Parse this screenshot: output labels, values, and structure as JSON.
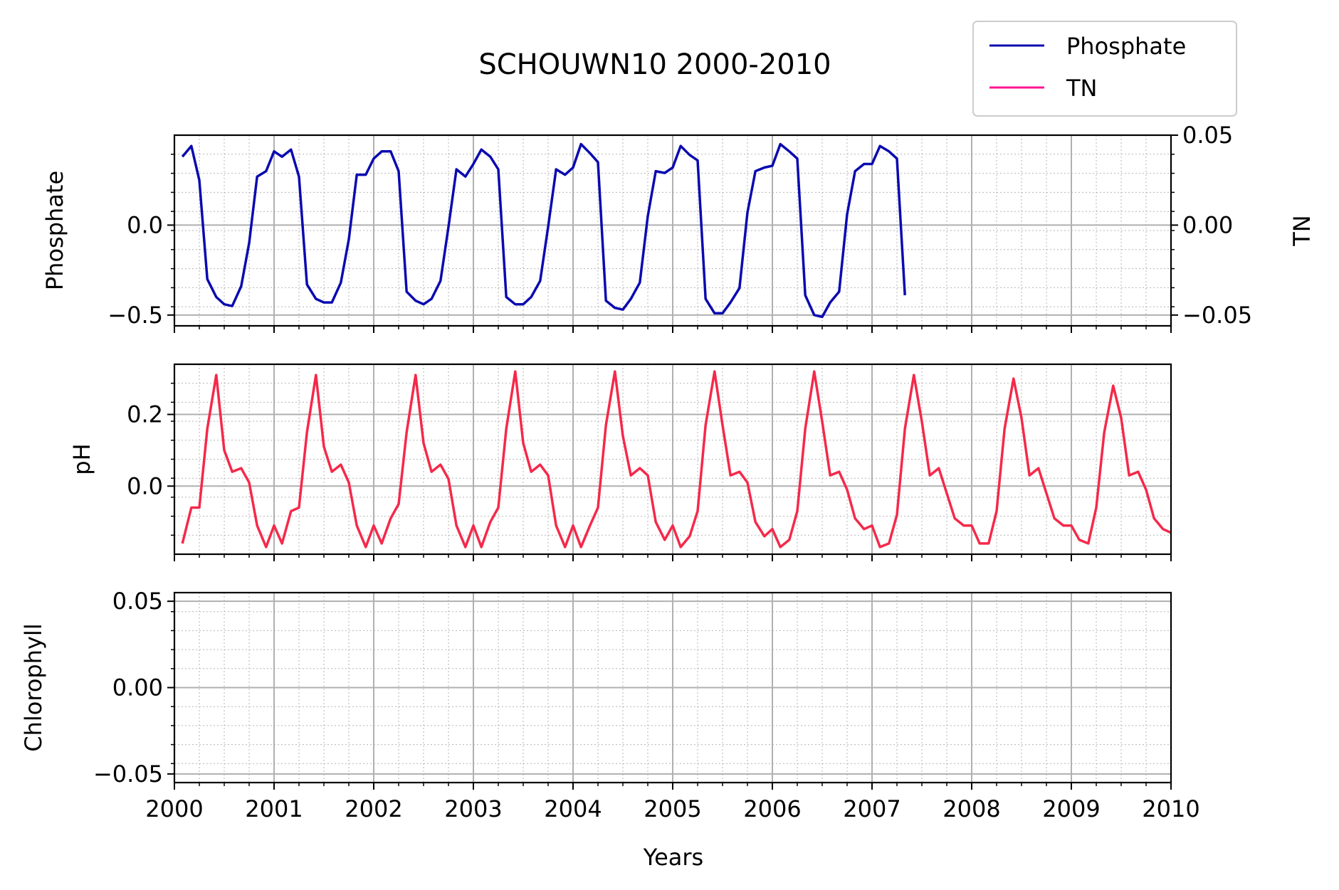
{
  "title": "SCHOUWN10 2000-2010",
  "xlabel": "Years",
  "legend": [
    {
      "label": "Phosphate",
      "color": "#0a0ab0"
    },
    {
      "label": "TN",
      "color": "#ff1493"
    }
  ],
  "chart_data": [
    {
      "type": "line",
      "panel": "top",
      "ylabel": "Phosphate",
      "ylabel_right": "TN",
      "xlim": [
        2000,
        2010
      ],
      "ylim": [
        -0.56,
        0.5
      ],
      "ylim_right": [
        -0.056,
        0.05
      ],
      "yticks": [
        {
          "v": -0.5,
          "label": "−0.5"
        },
        {
          "v": 0.0,
          "label": "0.0"
        }
      ],
      "yticks_right": [
        {
          "v": -0.05,
          "label": "−0.05"
        },
        {
          "v": 0.0,
          "label": "0.00"
        },
        {
          "v": 0.05,
          "label": "0.05"
        }
      ],
      "grid": true,
      "series": [
        {
          "name": "Phosphate",
          "color": "#0a0ab0",
          "x": [
            2000.08,
            2000.17,
            2000.25,
            2000.33,
            2000.42,
            2000.5,
            2000.58,
            2000.67,
            2000.75,
            2000.83,
            2000.92,
            2001.0,
            2001.08,
            2001.17,
            2001.25,
            2001.33,
            2001.42,
            2001.5,
            2001.58,
            2001.67,
            2001.75,
            2001.83,
            2001.92,
            2002.0,
            2002.08,
            2002.17,
            2002.25,
            2002.33,
            2002.42,
            2002.5,
            2002.58,
            2002.67,
            2002.75,
            2002.83,
            2002.92,
            2003.0,
            2003.08,
            2003.17,
            2003.25,
            2003.33,
            2003.42,
            2003.5,
            2003.58,
            2003.67,
            2003.75,
            2003.83,
            2003.92,
            2004.0,
            2004.08,
            2004.17,
            2004.25,
            2004.33,
            2004.42,
            2004.5,
            2004.58,
            2004.67,
            2004.75,
            2004.83,
            2004.92,
            2005.0,
            2005.08,
            2005.17,
            2005.25,
            2005.33,
            2005.42,
            2005.5,
            2005.58,
            2005.67,
            2005.75,
            2005.83,
            2005.92,
            2006.0,
            2006.08,
            2006.17,
            2006.25,
            2006.33,
            2006.42,
            2006.5,
            2006.58,
            2006.67,
            2006.75,
            2006.83,
            2006.92,
            2007.0,
            2007.08,
            2007.17,
            2007.25,
            2007.33
          ],
          "y": [
            0.38,
            0.44,
            0.25,
            -0.3,
            -0.4,
            -0.44,
            -0.45,
            -0.34,
            -0.1,
            0.27,
            0.3,
            0.41,
            0.38,
            0.42,
            0.27,
            -0.33,
            -0.41,
            -0.43,
            -0.43,
            -0.32,
            -0.08,
            0.28,
            0.28,
            0.37,
            0.41,
            0.41,
            0.3,
            -0.37,
            -0.42,
            -0.44,
            -0.41,
            -0.31,
            -0.01,
            0.31,
            0.27,
            0.34,
            0.42,
            0.38,
            0.31,
            -0.4,
            -0.44,
            -0.44,
            -0.4,
            -0.31,
            -0.01,
            0.31,
            0.28,
            0.32,
            0.45,
            0.4,
            0.35,
            -0.42,
            -0.46,
            -0.47,
            -0.41,
            -0.32,
            0.05,
            0.3,
            0.29,
            0.32,
            0.44,
            0.39,
            0.36,
            -0.41,
            -0.49,
            -0.49,
            -0.43,
            -0.35,
            0.07,
            0.3,
            0.32,
            0.33,
            0.45,
            0.41,
            0.37,
            -0.39,
            -0.5,
            -0.51,
            -0.43,
            -0.37,
            0.06,
            0.3,
            0.34,
            0.34,
            0.44,
            0.41,
            0.37,
            -0.39
          ]
        },
        {
          "name": "TN",
          "color": "#ff1493",
          "x": [],
          "y": []
        }
      ]
    },
    {
      "type": "line",
      "panel": "middle",
      "ylabel": "pH",
      "xlim": [
        2000,
        2010
      ],
      "ylim": [
        -0.19,
        0.34
      ],
      "yticks": [
        {
          "v": 0.0,
          "label": "0.0"
        },
        {
          "v": 0.2,
          "label": "0.2"
        }
      ],
      "grid": true,
      "series": [
        {
          "color": "#f5294a",
          "x": [
            2000.08,
            2000.17,
            2000.25,
            2000.33,
            2000.42,
            2000.5,
            2000.58,
            2000.67,
            2000.75,
            2000.83,
            2000.92,
            2001.0,
            2001.08,
            2001.17,
            2001.25,
            2001.33,
            2001.42,
            2001.5,
            2001.58,
            2001.67,
            2001.75,
            2001.83,
            2001.92,
            2002.0,
            2002.08,
            2002.17,
            2002.25,
            2002.33,
            2002.42,
            2002.5,
            2002.58,
            2002.67,
            2002.75,
            2002.83,
            2002.92,
            2003.0,
            2003.08,
            2003.17,
            2003.25,
            2003.33,
            2003.42,
            2003.5,
            2003.58,
            2003.67,
            2003.75,
            2003.83,
            2003.92,
            2004.0,
            2004.08,
            2004.17,
            2004.25,
            2004.33,
            2004.42,
            2004.5,
            2004.58,
            2004.67,
            2004.75,
            2004.83,
            2004.92,
            2005.0,
            2005.08,
            2005.17,
            2005.25,
            2005.33,
            2005.42,
            2005.5,
            2005.58,
            2005.67,
            2005.75,
            2005.83,
            2005.92,
            2006.0,
            2006.08,
            2006.17,
            2006.25,
            2006.33,
            2006.42,
            2006.5,
            2006.58,
            2006.67,
            2006.75,
            2006.83,
            2006.92,
            2007.0,
            2007.08,
            2007.17,
            2007.25,
            2007.33,
            2007.42,
            2007.5,
            2007.58,
            2007.67,
            2007.75,
            2007.83,
            2007.92,
            2008.0,
            2008.08,
            2008.17,
            2008.25,
            2008.33,
            2008.42,
            2008.5,
            2008.58,
            2008.67,
            2008.75,
            2008.83,
            2008.92,
            2009.0,
            2009.08,
            2009.17,
            2009.25,
            2009.33,
            2009.42,
            2009.5,
            2009.58,
            2009.67,
            2009.75,
            2009.83,
            2009.92,
            2010.0
          ],
          "y": [
            -0.16,
            -0.06,
            -0.06,
            0.16,
            0.31,
            0.1,
            0.04,
            0.05,
            0.01,
            -0.11,
            -0.17,
            -0.11,
            -0.16,
            -0.07,
            -0.06,
            0.15,
            0.31,
            0.11,
            0.04,
            0.06,
            0.01,
            -0.11,
            -0.17,
            -0.11,
            -0.16,
            -0.09,
            -0.05,
            0.15,
            0.31,
            0.12,
            0.04,
            0.06,
            0.02,
            -0.11,
            -0.17,
            -0.11,
            -0.17,
            -0.1,
            -0.06,
            0.16,
            0.32,
            0.12,
            0.04,
            0.06,
            0.03,
            -0.11,
            -0.17,
            -0.11,
            -0.17,
            -0.11,
            -0.06,
            0.17,
            0.32,
            0.14,
            0.03,
            0.05,
            0.03,
            -0.1,
            -0.15,
            -0.11,
            -0.17,
            -0.14,
            -0.07,
            0.17,
            0.32,
            0.17,
            0.03,
            0.04,
            0.01,
            -0.1,
            -0.14,
            -0.12,
            -0.17,
            -0.15,
            -0.07,
            0.16,
            0.32,
            0.18,
            0.03,
            0.04,
            -0.01,
            -0.09,
            -0.12,
            -0.11,
            -0.17,
            -0.16,
            -0.08,
            0.16,
            0.31,
            0.18,
            0.03,
            0.05,
            -0.02,
            -0.09,
            -0.11,
            -0.11,
            -0.16,
            -0.16,
            -0.07,
            0.16,
            0.3,
            0.19,
            0.03,
            0.05,
            -0.02,
            -0.09,
            -0.11,
            -0.11,
            -0.15,
            -0.16,
            -0.06,
            0.15,
            0.28,
            0.19,
            0.03,
            0.04,
            -0.01,
            -0.09,
            -0.12,
            -0.13
          ]
        }
      ]
    },
    {
      "type": "line",
      "panel": "bottom",
      "ylabel": "Chlorophyll",
      "xlim": [
        2000,
        2010
      ],
      "ylim": [
        -0.055,
        0.055
      ],
      "yticks": [
        {
          "v": -0.05,
          "label": "−0.05"
        },
        {
          "v": 0.0,
          "label": "0.00"
        },
        {
          "v": 0.05,
          "label": "0.05"
        }
      ],
      "xticks": [
        "2000",
        "2001",
        "2002",
        "2003",
        "2004",
        "2005",
        "2006",
        "2007",
        "2008",
        "2009",
        "2010"
      ],
      "grid": true,
      "series": []
    }
  ]
}
